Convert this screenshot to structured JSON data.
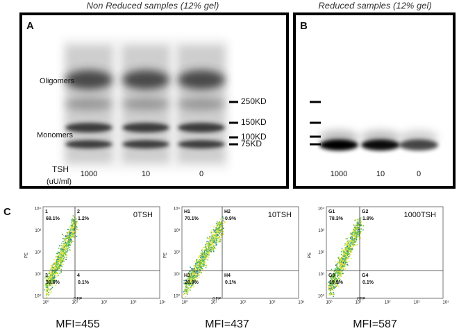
{
  "panel_a": {
    "letter": "A",
    "title": "Non Reduced samples (12% gel)",
    "band_labels": [
      "Oligomers",
      "Monomers"
    ],
    "markers": [
      "250KD",
      "150KD",
      "100KD",
      "75KD"
    ],
    "tsh_label": "TSH",
    "tsh_unit": "(uU/ml)",
    "lanes": [
      "1000",
      "10",
      "0"
    ]
  },
  "panel_b": {
    "letter": "B",
    "title": "Reduced samples (12% gel)",
    "lanes": [
      "1000",
      "10",
      "0"
    ]
  },
  "panel_c": {
    "letter": "C",
    "x_axis": "GFP",
    "y_axis": "PE",
    "ticks": [
      "10⁰",
      "10¹",
      "10²",
      "10³",
      "10⁴"
    ],
    "plots": [
      {
        "sample": "0TSH",
        "gates": [
          "1",
          "2",
          "3",
          "4"
        ],
        "percents": [
          "68.1%",
          "1.2%",
          "30.6%",
          "0.1%"
        ],
        "mfi": "MFI=455"
      },
      {
        "sample": "10TSH",
        "gates": [
          "H1",
          "H2",
          "H3",
          "H4"
        ],
        "percents": [
          "70.1%",
          "0.9%",
          "28.9%",
          "0.1%"
        ],
        "mfi": "MFI=437"
      },
      {
        "sample": "1000TSH",
        "gates": [
          "G1",
          "G2",
          "G3",
          "G4"
        ],
        "percents": [
          "78.3%",
          "1.8%",
          "19.9%",
          "0.1%"
        ],
        "mfi": "MFI=587"
      }
    ]
  }
}
